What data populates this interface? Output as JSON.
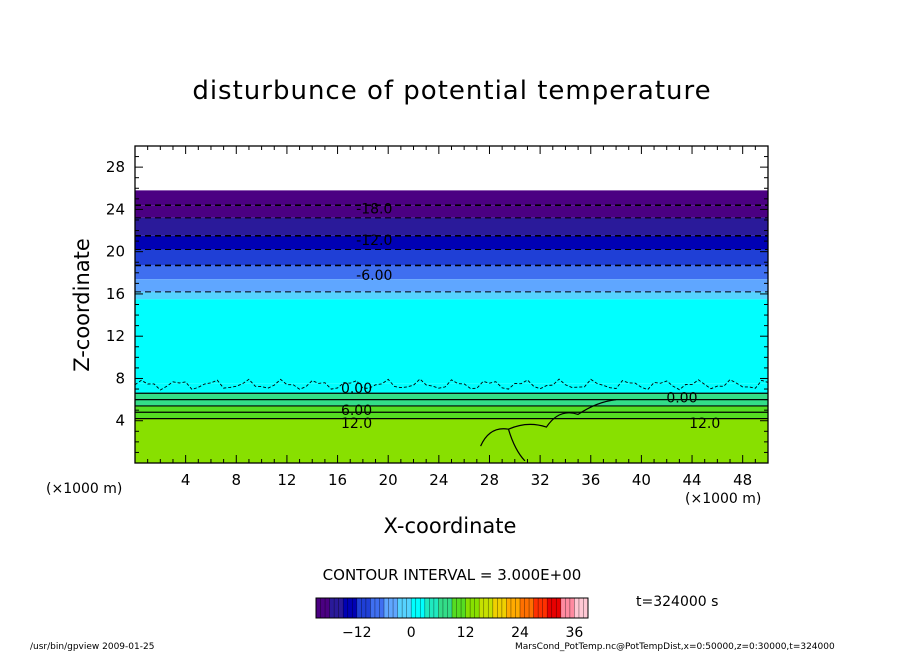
{
  "chart_data": {
    "type": "heatmap",
    "title": "disturbunce of potential temperature",
    "xlabel": "X-coordinate",
    "ylabel": "Z-coordinate",
    "x_unit_label": "(×1000 m)",
    "xlim": [
      0,
      50
    ],
    "ylim": [
      0,
      30
    ],
    "x_ticks": [
      4,
      8,
      12,
      16,
      20,
      24,
      28,
      32,
      36,
      40,
      44,
      48
    ],
    "y_ticks": [
      4,
      8,
      12,
      16,
      20,
      24,
      28
    ],
    "contour_interval_label": "CONTOUR INTERVAL = 3.000E+00",
    "time_label": "t=324000 s",
    "colorbar": {
      "ticks": [
        -12,
        0,
        12,
        24,
        36
      ],
      "min": -21,
      "max": 39,
      "colors": [
        "#4b0082",
        "#2a1a9a",
        "#0000b4",
        "#1f3fd6",
        "#3f6ff0",
        "#5fa6ff",
        "#56d2ff",
        "#00ffff",
        "#1fe9c0",
        "#33dd88",
        "#55dd22",
        "#88e000",
        "#c6e000",
        "#f0d000",
        "#ffaa00",
        "#ff7000",
        "#ff3000",
        "#e80000",
        "#ff8aa0",
        "#ffc8d4"
      ]
    },
    "contour_labels": [
      {
        "text": "-18.0",
        "x": 18.9,
        "z": 24.1
      },
      {
        "text": "-12.0",
        "x": 18.9,
        "z": 21.1
      },
      {
        "text": "-6.00",
        "x": 18.9,
        "z": 17.8
      },
      {
        "text": "0.00",
        "x": 17.5,
        "z": 7.1
      },
      {
        "text": "0.00",
        "x": 43.2,
        "z": 6.2
      },
      {
        "text": "6.00",
        "x": 17.5,
        "z": 5.0
      },
      {
        "text": "12.0",
        "x": 17.5,
        "z": 3.8
      },
      {
        "text": "12.0",
        "x": 45.0,
        "z": 3.8
      }
    ],
    "layers": [
      {
        "z_from": 24.4,
        "z_to": 25.8,
        "value": -21
      },
      {
        "z_from": 23.2,
        "z_to": 24.4,
        "value": -19
      },
      {
        "z_from": 21.5,
        "z_to": 23.2,
        "value": -16
      },
      {
        "z_from": 20.2,
        "z_to": 21.5,
        "value": -13
      },
      {
        "z_from": 18.7,
        "z_to": 20.2,
        "value": -10
      },
      {
        "z_from": 17.4,
        "z_to": 18.7,
        "value": -7
      },
      {
        "z_from": 16.2,
        "z_to": 17.4,
        "value": -4
      },
      {
        "z_from": 15.5,
        "z_to": 16.2,
        "value": -2
      },
      {
        "z_from": 7.5,
        "z_to": 15.5,
        "value": 0
      },
      {
        "z_from": 6.6,
        "z_to": 7.5,
        "value": 2
      },
      {
        "z_from": 5.4,
        "z_to": 6.6,
        "value": 6
      },
      {
        "z_from": 4.2,
        "z_to": 5.4,
        "value": 9
      },
      {
        "z_from": 0,
        "z_to": 4.2,
        "value": 13
      }
    ]
  },
  "footer": {
    "left": "/usr/bin/gpview   2009-01-25",
    "right": "MarsCond_PotTemp.nc@PotTempDist,x=0:50000,z=0:30000,t=324000"
  }
}
